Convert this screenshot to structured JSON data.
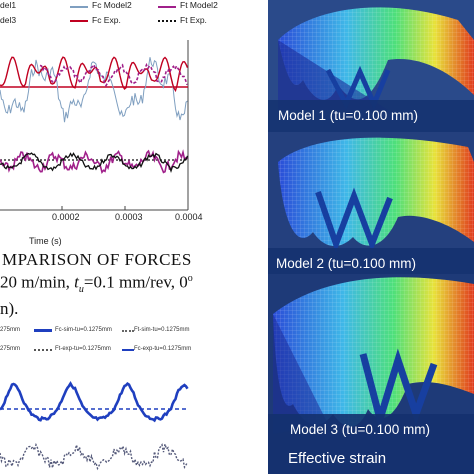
{
  "left": {
    "top_chart": {
      "legend": {
        "row1": [
          "del1",
          "Fc Model2",
          "Ft Model2"
        ],
        "row2": [
          "del3",
          "Fc Exp.",
          "Ft Exp."
        ]
      },
      "x_ticks": [
        "0.0002",
        "0.0003",
        "0.0004"
      ],
      "x_label": "Time (s)"
    },
    "caption": {
      "line1": "MPARISON  OF  FORCES",
      "line2": "20 m/min,",
      "line2b": "=0.1 mm/rev, 0",
      "line3": "n).",
      "t_letter": "t",
      "t_sub": "u",
      "degree": "o"
    },
    "bottom_chart": {
      "legend": {
        "row1": [
          "275mm",
          "Fc-sim-tu=0.1275mm",
          "Ft-sim-tu=0.1275mm"
        ],
        "row2": [
          "275mm",
          "Ft-exp-tu=0.1275mm",
          "Fc-exp-tu=0.1275mm"
        ]
      }
    }
  },
  "right": {
    "labels": [
      "Model 1 (tu=0.100 mm)",
      "Model 2 (tu=0.100 mm)",
      "Model 3 (tu=0.100 mm)"
    ],
    "footer": "Effective strain"
  },
  "colors": {
    "fc_model2": "#7f9fc0",
    "ft_model2": "#a0208a",
    "fc_exp": "#c00020",
    "ft_exp": "#111111",
    "sim_blue": "#1f3fbf",
    "exp_grey": "#555a7a",
    "panel_bg": "#0f2f6e"
  }
}
